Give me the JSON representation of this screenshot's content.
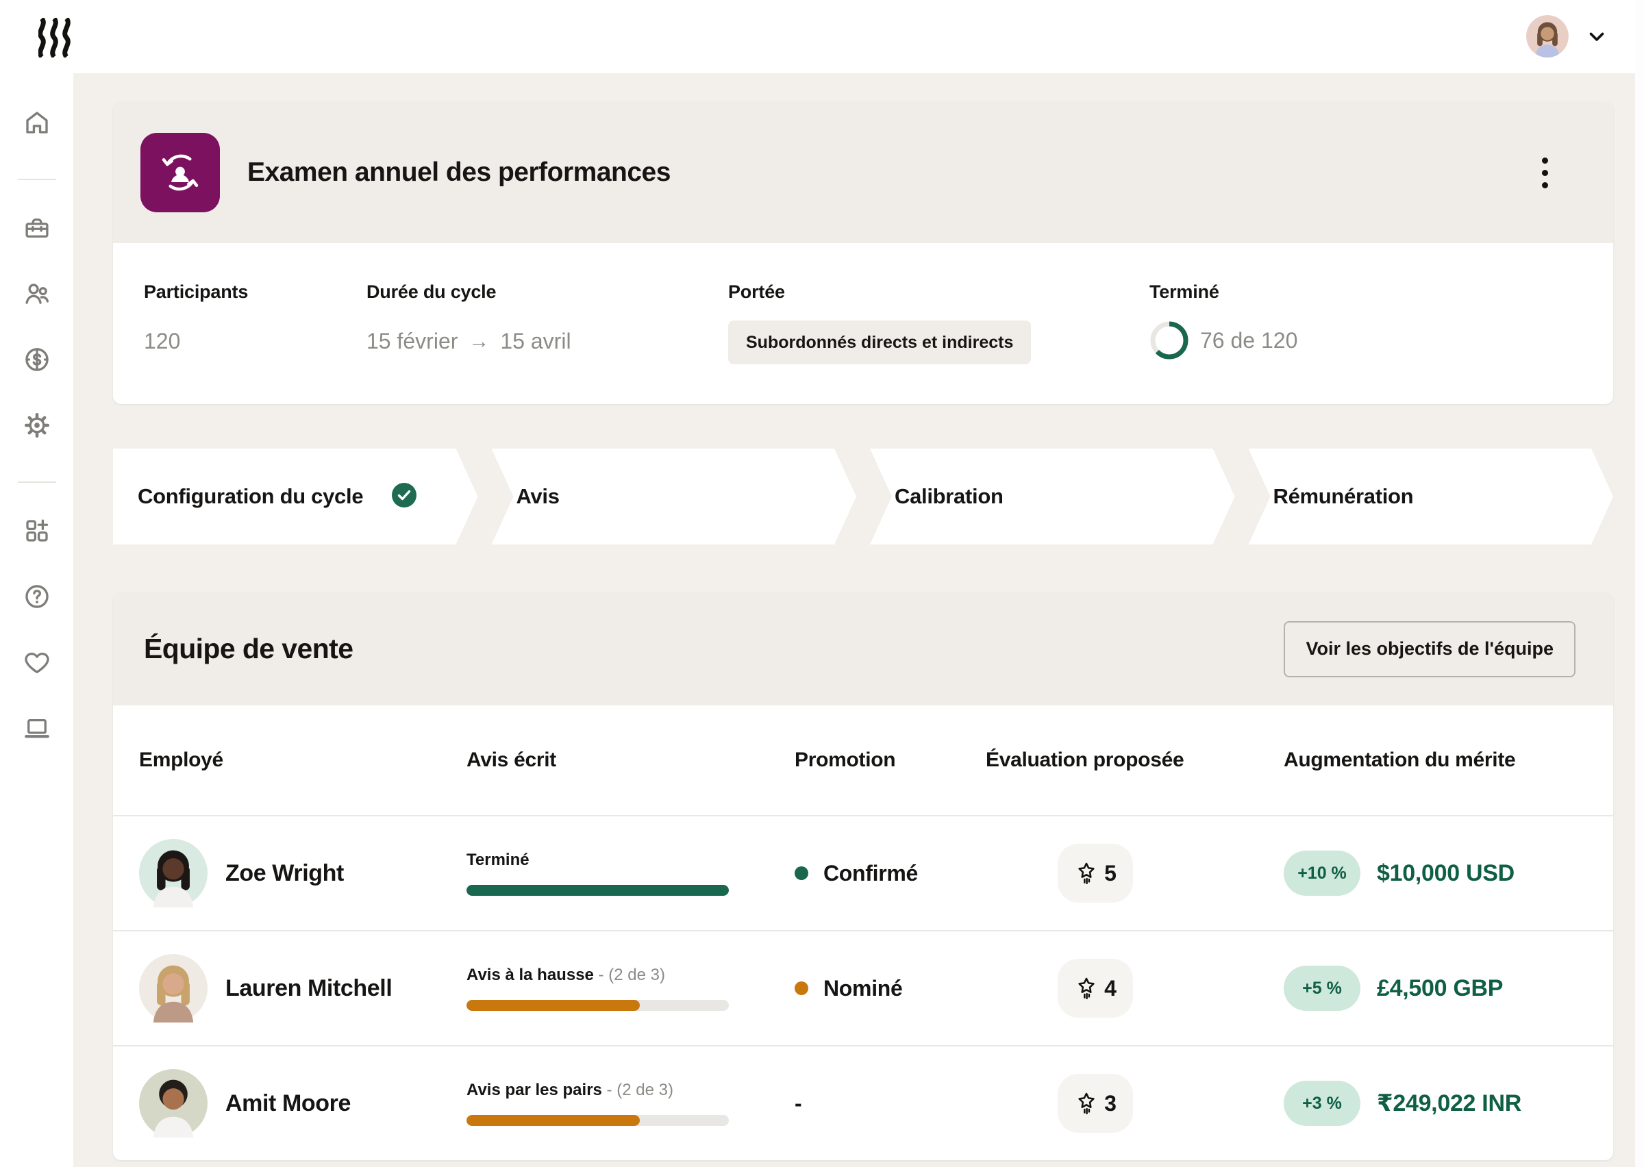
{
  "topbar": {
    "brand": "Rippling",
    "avatar": {
      "bg": "#E9CEC6",
      "hair": "#6E4F3A",
      "skin": "#C89B78",
      "shirt": "#B9C2E4"
    }
  },
  "sidebar": {
    "items": [
      {
        "name": "home"
      },
      {
        "name": "briefcase"
      },
      {
        "name": "people"
      },
      {
        "name": "pay"
      },
      {
        "name": "settings"
      },
      {
        "name": "apps-add"
      },
      {
        "name": "help"
      },
      {
        "name": "favorites"
      },
      {
        "name": "device"
      }
    ]
  },
  "summary": {
    "title": "Examen annuel des performances",
    "stats": {
      "participants": {
        "label": "Participants",
        "value": "120"
      },
      "cycle": {
        "label": "Durée du cycle",
        "start": "15 février",
        "arrow": "→",
        "end": "15 avril"
      },
      "scope": {
        "label": "Portée",
        "value": "Subordonnés directs et indirects"
      },
      "completed": {
        "label": "Terminé",
        "value": "76 de 120",
        "percent": 63
      }
    }
  },
  "stepper": {
    "steps": [
      {
        "label": "Configuration du cycle",
        "completed": true
      },
      {
        "label": "Avis",
        "completed": false
      },
      {
        "label": "Calibration",
        "completed": false
      },
      {
        "label": "Rémunération",
        "completed": false
      }
    ]
  },
  "team": {
    "title": "Équipe de vente",
    "goals_button": "Voir les objectifs de l'équipe",
    "columns": [
      "Employé",
      "Avis écrit",
      "Promotion",
      "Évaluation proposée",
      "Augmentation du mérite"
    ],
    "rows": [
      {
        "name": "Zoe Wright",
        "review_label": "Terminé",
        "review_detail": "",
        "progress": 100,
        "progress_color": "green",
        "promotion": "Confirmé",
        "promotion_dot": "green",
        "rating": "5",
        "merit_pct": "+10 %",
        "merit_value": "$10,000 USD",
        "avatar": {
          "bg": "#D8EAE1",
          "hair": "#1C1714",
          "skin": "#5C3A2B",
          "shirt": "#F2F1EF"
        }
      },
      {
        "name": "Lauren Mitchell",
        "review_label": "Avis à la hausse",
        "review_detail": " - (2 de 3)",
        "progress": 66,
        "progress_color": "orange",
        "promotion": "Nominé",
        "promotion_dot": "orange",
        "rating": "4",
        "merit_pct": "+5 %",
        "merit_value": "£4,500 GBP",
        "avatar": {
          "bg": "#EFEBE4",
          "hair": "#C8A36B",
          "skin": "#D8A98A",
          "shirt": "#BD9A85"
        }
      },
      {
        "name": "Amit Moore",
        "review_label": "Avis par les pairs",
        "review_detail": " - (2 de 3)",
        "progress": 66,
        "progress_color": "orange",
        "promotion": "-",
        "promotion_dot": null,
        "rating": "3",
        "merit_pct": "+3 %",
        "merit_value": "₹249,022 INR",
        "avatar": {
          "bg": "#D5D8C6",
          "hair": "#241E1A",
          "skin": "#A9724E",
          "shirt": "#F4F3F1"
        }
      }
    ]
  },
  "colors": {
    "green": "#19674E",
    "orange": "#C9780D",
    "brand_purple": "#7C1160",
    "merit_bg": "#CEE8DC",
    "merit_text": "#0F5F45"
  }
}
